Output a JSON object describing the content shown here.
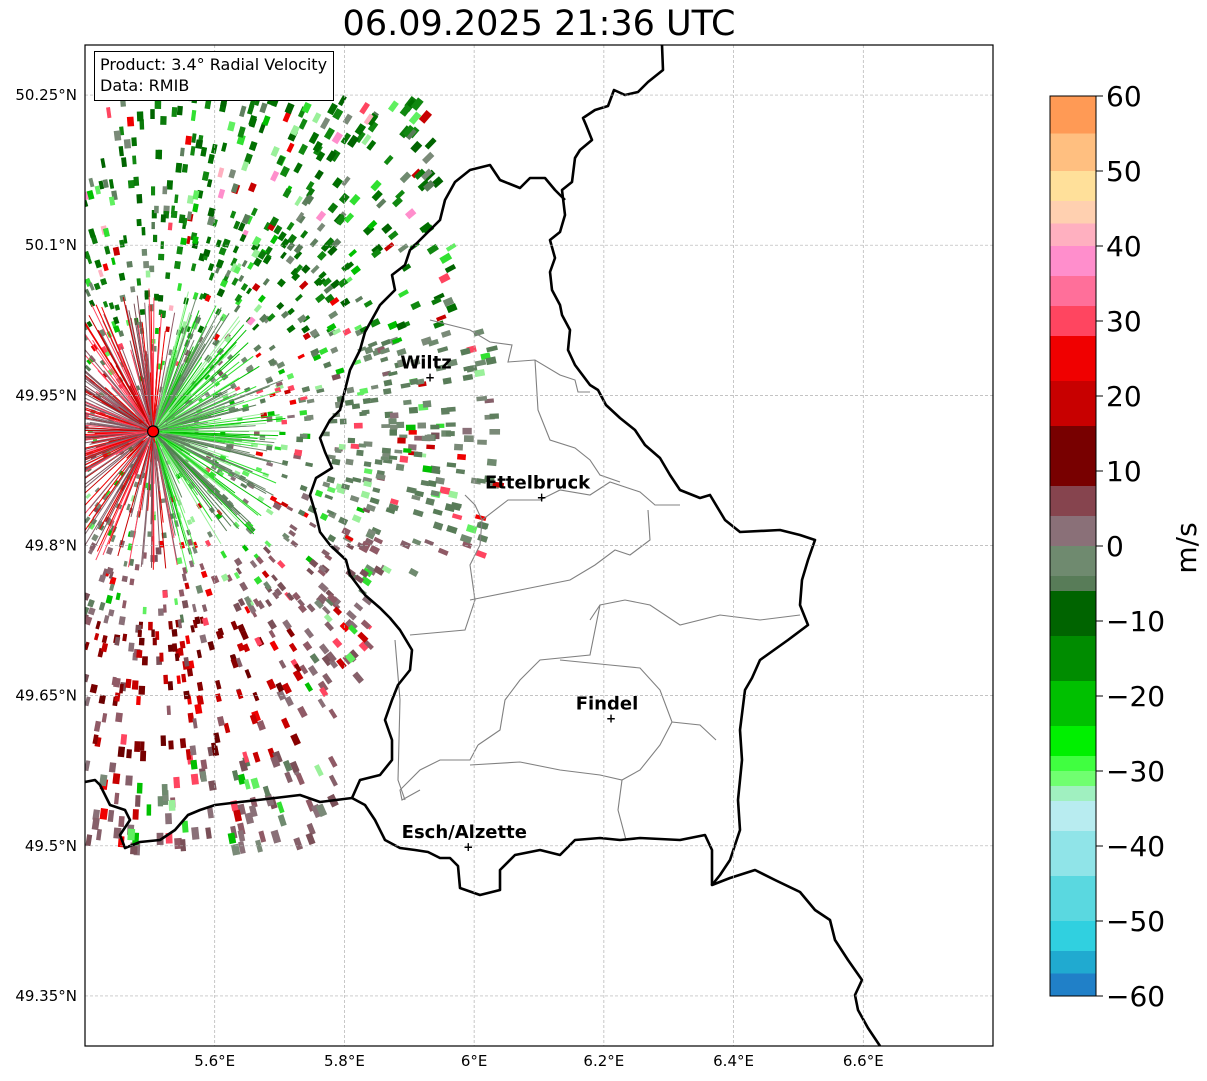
{
  "title": "06.09.2025 21:36 UTC",
  "info": {
    "product": "Product: 3.4° Radial Velocity",
    "data": "Data: RMIB"
  },
  "map": {
    "lon_range": [
      5.4,
      6.8
    ],
    "lat_range": [
      49.3,
      50.3
    ],
    "x_ticks": [
      {
        "value": 5.6,
        "label": "5.6°E"
      },
      {
        "value": 5.8,
        "label": "5.8°E"
      },
      {
        "value": 6.0,
        "label": "6°E"
      },
      {
        "value": 6.2,
        "label": "6.2°E"
      },
      {
        "value": 6.4,
        "label": "6.4°E"
      },
      {
        "value": 6.6,
        "label": "6.6°E"
      }
    ],
    "y_ticks": [
      {
        "value": 50.25,
        "label": "50.25°N"
      },
      {
        "value": 50.1,
        "label": "50.1°N"
      },
      {
        "value": 49.95,
        "label": "49.95°N"
      },
      {
        "value": 49.8,
        "label": "49.8°N"
      },
      {
        "value": 49.65,
        "label": "49.65°N"
      },
      {
        "value": 49.5,
        "label": "49.5°N"
      },
      {
        "value": 49.35,
        "label": "49.35°N"
      }
    ],
    "radar_site": {
      "lon": 5.505,
      "lat": 49.914
    },
    "cities": [
      {
        "name": "Wiltz",
        "lon": 5.932,
        "lat": 49.968
      },
      {
        "name": "Ettelbruck",
        "lon": 6.104,
        "lat": 49.848
      },
      {
        "name": "Findel",
        "lon": 6.211,
        "lat": 49.627
      },
      {
        "name": "Esch/Alzette",
        "lon": 5.991,
        "lat": 49.499
      }
    ]
  },
  "colorbar": {
    "label": "m/s",
    "min": -60,
    "max": 60,
    "ticks": [
      {
        "value": 60,
        "label": "60"
      },
      {
        "value": 50,
        "label": "50"
      },
      {
        "value": 40,
        "label": "40"
      },
      {
        "value": 30,
        "label": "30"
      },
      {
        "value": 20,
        "label": "20"
      },
      {
        "value": 10,
        "label": "10"
      },
      {
        "value": 0,
        "label": "0"
      },
      {
        "value": -10,
        "label": "−10"
      },
      {
        "value": -20,
        "label": "−20"
      },
      {
        "value": -30,
        "label": "−30"
      },
      {
        "value": -40,
        "label": "−40"
      },
      {
        "value": -50,
        "label": "−50"
      },
      {
        "value": -60,
        "label": "−60"
      }
    ],
    "bands": [
      {
        "from": 55,
        "to": 60,
        "color": "#ff9a55"
      },
      {
        "from": 50,
        "to": 55,
        "color": "#ffbf80"
      },
      {
        "from": 46,
        "to": 50,
        "color": "#ffe09a"
      },
      {
        "from": 43,
        "to": 46,
        "color": "#ffd0b0"
      },
      {
        "from": 40,
        "to": 43,
        "color": "#ffb0c0"
      },
      {
        "from": 36,
        "to": 40,
        "color": "#ff8ecc"
      },
      {
        "from": 32,
        "to": 36,
        "color": "#ff6f9a"
      },
      {
        "from": 28,
        "to": 32,
        "color": "#ff4560"
      },
      {
        "from": 22,
        "to": 28,
        "color": "#f00000"
      },
      {
        "from": 16,
        "to": 22,
        "color": "#c80000"
      },
      {
        "from": 8,
        "to": 16,
        "color": "#780000"
      },
      {
        "from": 4,
        "to": 8,
        "color": "#86444e"
      },
      {
        "from": 0,
        "to": 4,
        "color": "#8a7078"
      },
      {
        "from": -4,
        "to": 0,
        "color": "#6f8a6f"
      },
      {
        "from": -6,
        "to": -4,
        "color": "#587c58"
      },
      {
        "from": -12,
        "to": -6,
        "color": "#006400"
      },
      {
        "from": -18,
        "to": -12,
        "color": "#008c00"
      },
      {
        "from": -24,
        "to": -18,
        "color": "#00c000"
      },
      {
        "from": -28,
        "to": -24,
        "color": "#00f000"
      },
      {
        "from": -30,
        "to": -28,
        "color": "#40ff40"
      },
      {
        "from": -32,
        "to": -30,
        "color": "#70ff70"
      },
      {
        "from": -34,
        "to": -32,
        "color": "#a0f0c0"
      },
      {
        "from": -38,
        "to": -34,
        "color": "#b8ecf0"
      },
      {
        "from": -44,
        "to": -38,
        "color": "#90e4e8"
      },
      {
        "from": -50,
        "to": -44,
        "color": "#5ad8e0"
      },
      {
        "from": -54,
        "to": -50,
        "color": "#30d0e0"
      },
      {
        "from": -57,
        "to": -54,
        "color": "#20aad0"
      },
      {
        "from": -60,
        "to": -57,
        "color": "#2080c8"
      }
    ]
  },
  "colors": {
    "border": "#000000",
    "canton_lines": "#808080",
    "grid": "#b0b0b0",
    "radar_marker": "#ff0000"
  }
}
